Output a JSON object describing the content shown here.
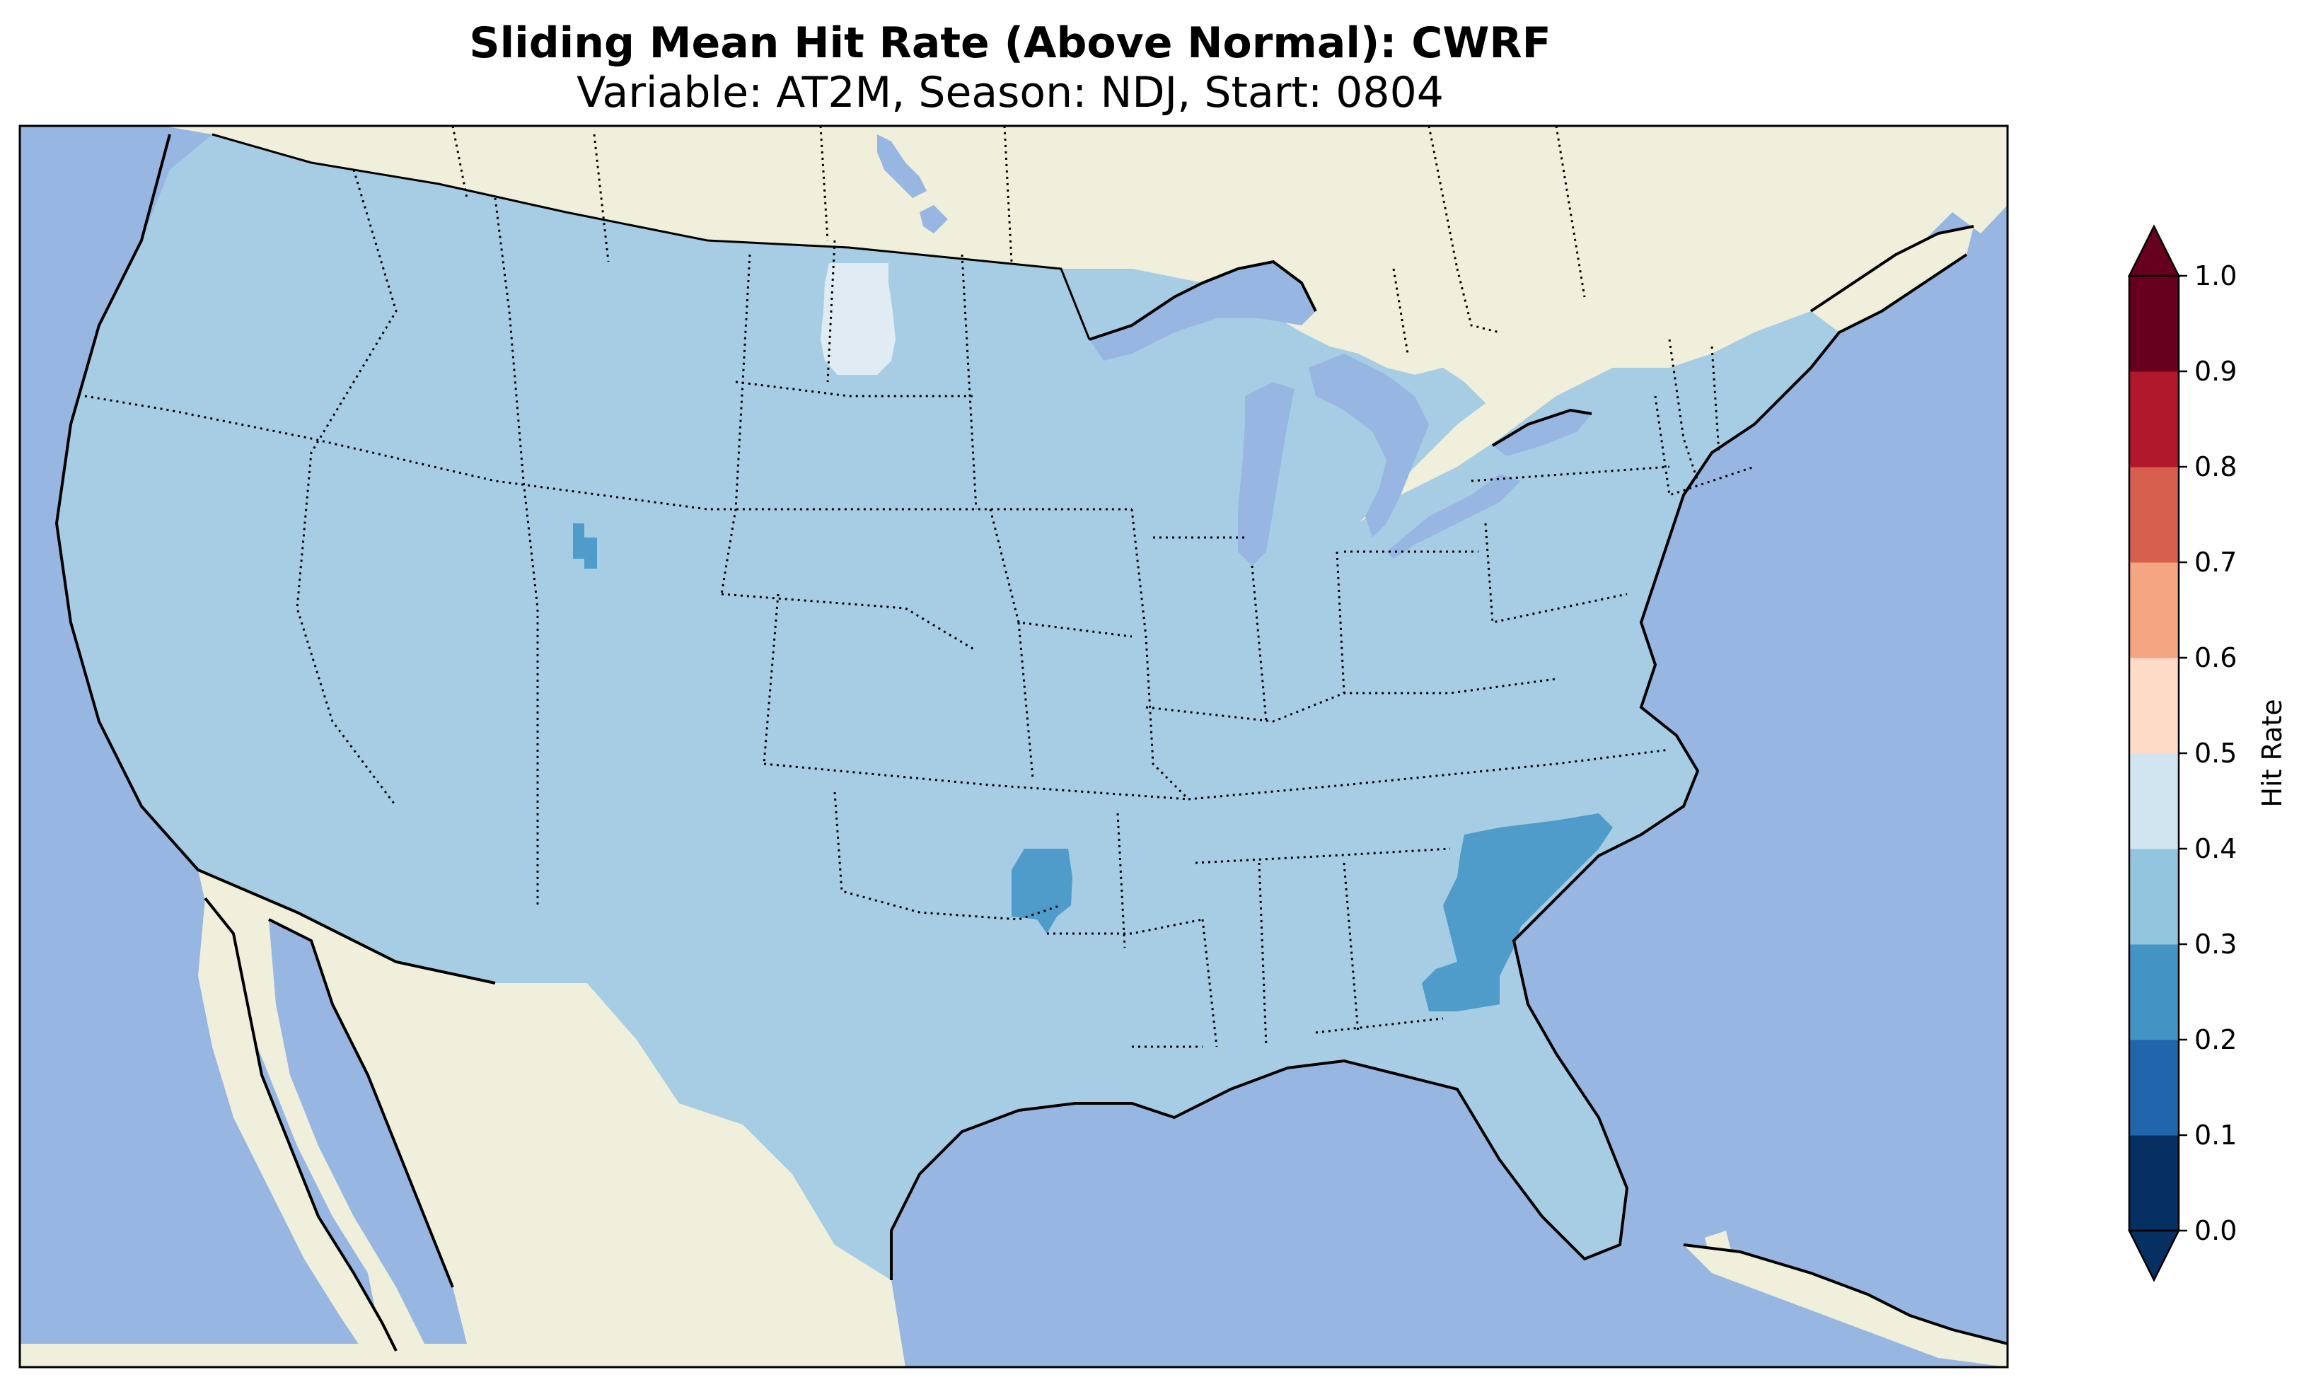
{
  "title": {
    "line1": "Sliding Mean Hit Rate (Above Normal): CWRF",
    "line2": "Variable: AT2M, Season: NDJ, Start: 0804"
  },
  "colors": {
    "ocean": "#97b6e1",
    "land": "#efefdb",
    "field_main": "#a6cde3",
    "field_low": "#4f9bc9",
    "field_high": "#e1ebf3"
  },
  "colorbar": {
    "label": "Hit Rate",
    "ticks": [
      "0.0",
      "0.1",
      "0.2",
      "0.3",
      "0.4",
      "0.5",
      "0.6",
      "0.7",
      "0.8",
      "0.9",
      "1.0"
    ],
    "colors": [
      "#053061",
      "#2166ac",
      "#4393c3",
      "#92c5de",
      "#d1e5f0",
      "#fddbc7",
      "#f4a582",
      "#d6604d",
      "#b2182b",
      "#67001f"
    ],
    "extend_low_color": "#053061",
    "extend_high_color": "#67001f"
  },
  "map_data": {
    "region": "Continental United States",
    "variable": "AT2M",
    "season": "NDJ",
    "start": "0804",
    "predominant_range": [
      0.3,
      0.4
    ],
    "areas": [
      {
        "region": "North Dakota",
        "range": [
          0.4,
          0.5
        ]
      },
      {
        "region": "Wyoming",
        "range": [
          0.2,
          0.3
        ]
      },
      {
        "region": "Oklahoma-Arkansas border",
        "range": [
          0.2,
          0.3
        ]
      },
      {
        "region": "South Carolina / Georgia",
        "range": [
          0.2,
          0.3
        ]
      }
    ]
  }
}
